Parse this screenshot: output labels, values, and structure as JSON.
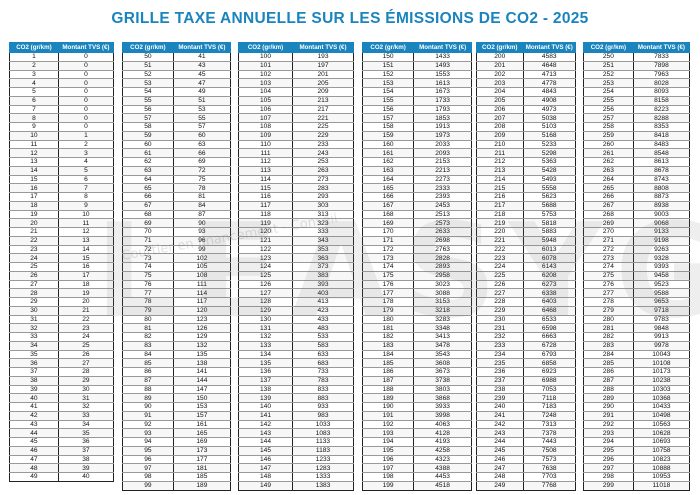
{
  "title": "GRILLE TAXE ANNUELLE SUR LES ÉMISSIONS DE CO2 - 2025",
  "accent_color": "#1a84be",
  "watermark": {
    "text": "LEASYGO",
    "subtext": "Courtier en financement - Conseil"
  },
  "headers": {
    "co2": "CO2 (gr/km)",
    "tvs": "Montant TVS (€)"
  },
  "tables": [
    {
      "rows": [
        [
          "1",
          "0"
        ],
        [
          "2",
          "0"
        ],
        [
          "3",
          "0"
        ],
        [
          "4",
          "0"
        ],
        [
          "5",
          "0"
        ],
        [
          "6",
          "0"
        ],
        [
          "7",
          "0"
        ],
        [
          "8",
          "0"
        ],
        [
          "9",
          "0"
        ],
        [
          "10",
          "1"
        ],
        [
          "11",
          "2"
        ],
        [
          "12",
          "3"
        ],
        [
          "13",
          "4"
        ],
        [
          "14",
          "5"
        ],
        [
          "15",
          "6"
        ],
        [
          "16",
          "7"
        ],
        [
          "17",
          "8"
        ],
        [
          "18",
          "9"
        ],
        [
          "19",
          "10"
        ],
        [
          "20",
          "11"
        ],
        [
          "21",
          "12"
        ],
        [
          "22",
          "13"
        ],
        [
          "23",
          "14"
        ],
        [
          "24",
          "15"
        ],
        [
          "25",
          "16"
        ],
        [
          "26",
          "17"
        ],
        [
          "27",
          "18"
        ],
        [
          "28",
          "19"
        ],
        [
          "29",
          "20"
        ],
        [
          "30",
          "21"
        ],
        [
          "31",
          "22"
        ],
        [
          "32",
          "23"
        ],
        [
          "33",
          "24"
        ],
        [
          "34",
          "25"
        ],
        [
          "35",
          "26"
        ],
        [
          "36",
          "27"
        ],
        [
          "37",
          "28"
        ],
        [
          "38",
          "29"
        ],
        [
          "39",
          "30"
        ],
        [
          "40",
          "31"
        ],
        [
          "41",
          "32"
        ],
        [
          "42",
          "33"
        ],
        [
          "43",
          "34"
        ],
        [
          "44",
          "35"
        ],
        [
          "45",
          "36"
        ],
        [
          "46",
          "37"
        ],
        [
          "47",
          "38"
        ],
        [
          "48",
          "39"
        ],
        [
          "49",
          "40"
        ]
      ]
    },
    {
      "rows": [
        [
          "50",
          "41"
        ],
        [
          "51",
          "43"
        ],
        [
          "52",
          "45"
        ],
        [
          "53",
          "47"
        ],
        [
          "54",
          "49"
        ],
        [
          "55",
          "51"
        ],
        [
          "56",
          "53"
        ],
        [
          "57",
          "55"
        ],
        [
          "58",
          "57"
        ],
        [
          "59",
          "60"
        ],
        [
          "60",
          "63"
        ],
        [
          "61",
          "66"
        ],
        [
          "62",
          "69"
        ],
        [
          "63",
          "72"
        ],
        [
          "64",
          "75"
        ],
        [
          "65",
          "78"
        ],
        [
          "66",
          "81"
        ],
        [
          "67",
          "84"
        ],
        [
          "68",
          "87"
        ],
        [
          "69",
          "90"
        ],
        [
          "70",
          "93"
        ],
        [
          "71",
          "96"
        ],
        [
          "72",
          "99"
        ],
        [
          "73",
          "102"
        ],
        [
          "74",
          "105"
        ],
        [
          "75",
          "108"
        ],
        [
          "76",
          "111"
        ],
        [
          "77",
          "114"
        ],
        [
          "78",
          "117"
        ],
        [
          "79",
          "120"
        ],
        [
          "80",
          "123"
        ],
        [
          "81",
          "126"
        ],
        [
          "82",
          "129"
        ],
        [
          "83",
          "132"
        ],
        [
          "84",
          "135"
        ],
        [
          "85",
          "138"
        ],
        [
          "86",
          "141"
        ],
        [
          "87",
          "144"
        ],
        [
          "88",
          "147"
        ],
        [
          "89",
          "150"
        ],
        [
          "90",
          "153"
        ],
        [
          "91",
          "157"
        ],
        [
          "92",
          "161"
        ],
        [
          "93",
          "165"
        ],
        [
          "94",
          "169"
        ],
        [
          "95",
          "173"
        ],
        [
          "96",
          "177"
        ],
        [
          "97",
          "181"
        ],
        [
          "98",
          "185"
        ],
        [
          "99",
          "189"
        ]
      ]
    },
    {
      "rows": [
        [
          "100",
          "193"
        ],
        [
          "101",
          "197"
        ],
        [
          "102",
          "201"
        ],
        [
          "103",
          "205"
        ],
        [
          "104",
          "209"
        ],
        [
          "105",
          "213"
        ],
        [
          "106",
          "217"
        ],
        [
          "107",
          "221"
        ],
        [
          "108",
          "225"
        ],
        [
          "109",
          "229"
        ],
        [
          "110",
          "233"
        ],
        [
          "111",
          "243"
        ],
        [
          "112",
          "253"
        ],
        [
          "113",
          "263"
        ],
        [
          "114",
          "273"
        ],
        [
          "115",
          "283"
        ],
        [
          "116",
          "293"
        ],
        [
          "117",
          "303"
        ],
        [
          "118",
          "313"
        ],
        [
          "119",
          "323"
        ],
        [
          "120",
          "333"
        ],
        [
          "121",
          "343"
        ],
        [
          "122",
          "353"
        ],
        [
          "123",
          "363"
        ],
        [
          "124",
          "373"
        ],
        [
          "125",
          "383"
        ],
        [
          "126",
          "393"
        ],
        [
          "127",
          "403"
        ],
        [
          "128",
          "413"
        ],
        [
          "129",
          "423"
        ],
        [
          "130",
          "433"
        ],
        [
          "131",
          "483"
        ],
        [
          "132",
          "533"
        ],
        [
          "133",
          "583"
        ],
        [
          "134",
          "633"
        ],
        [
          "135",
          "683"
        ],
        [
          "136",
          "733"
        ],
        [
          "137",
          "783"
        ],
        [
          "138",
          "833"
        ],
        [
          "139",
          "883"
        ],
        [
          "140",
          "933"
        ],
        [
          "141",
          "983"
        ],
        [
          "142",
          "1033"
        ],
        [
          "143",
          "1083"
        ],
        [
          "144",
          "1133"
        ],
        [
          "145",
          "1183"
        ],
        [
          "146",
          "1233"
        ],
        [
          "147",
          "1283"
        ],
        [
          "148",
          "1333"
        ],
        [
          "149",
          "1383"
        ]
      ]
    },
    {
      "rows": [
        [
          "150",
          "1433"
        ],
        [
          "151",
          "1493"
        ],
        [
          "152",
          "1553"
        ],
        [
          "153",
          "1613"
        ],
        [
          "154",
          "1673"
        ],
        [
          "155",
          "1733"
        ],
        [
          "156",
          "1793"
        ],
        [
          "157",
          "1853"
        ],
        [
          "158",
          "1913"
        ],
        [
          "159",
          "1973"
        ],
        [
          "160",
          "2033"
        ],
        [
          "161",
          "2093"
        ],
        [
          "162",
          "2153"
        ],
        [
          "163",
          "2213"
        ],
        [
          "164",
          "2273"
        ],
        [
          "165",
          "2333"
        ],
        [
          "166",
          "2393"
        ],
        [
          "167",
          "2453"
        ],
        [
          "168",
          "2513"
        ],
        [
          "169",
          "2573"
        ],
        [
          "170",
          "2633"
        ],
        [
          "171",
          "2698"
        ],
        [
          "172",
          "2763"
        ],
        [
          "173",
          "2828"
        ],
        [
          "174",
          "2893"
        ],
        [
          "175",
          "2958"
        ],
        [
          "176",
          "3023"
        ],
        [
          "177",
          "3088"
        ],
        [
          "178",
          "3153"
        ],
        [
          "179",
          "3218"
        ],
        [
          "180",
          "3283"
        ],
        [
          "181",
          "3348"
        ],
        [
          "182",
          "3413"
        ],
        [
          "183",
          "3478"
        ],
        [
          "184",
          "3543"
        ],
        [
          "185",
          "3608"
        ],
        [
          "186",
          "3673"
        ],
        [
          "187",
          "3738"
        ],
        [
          "188",
          "3803"
        ],
        [
          "189",
          "3868"
        ],
        [
          "190",
          "3933"
        ],
        [
          "191",
          "3998"
        ],
        [
          "192",
          "4063"
        ],
        [
          "193",
          "4128"
        ],
        [
          "194",
          "4193"
        ],
        [
          "195",
          "4258"
        ],
        [
          "196",
          "4323"
        ],
        [
          "197",
          "4388"
        ],
        [
          "198",
          "4453"
        ],
        [
          "199",
          "4518"
        ]
      ]
    },
    {
      "rows": [
        [
          "200",
          "4583"
        ],
        [
          "201",
          "4648"
        ],
        [
          "202",
          "4713"
        ],
        [
          "203",
          "4778"
        ],
        [
          "204",
          "4843"
        ],
        [
          "205",
          "4908"
        ],
        [
          "206",
          "4973"
        ],
        [
          "207",
          "5038"
        ],
        [
          "208",
          "5103"
        ],
        [
          "209",
          "5168"
        ],
        [
          "210",
          "5233"
        ],
        [
          "211",
          "5298"
        ],
        [
          "212",
          "5363"
        ],
        [
          "213",
          "5428"
        ],
        [
          "214",
          "5493"
        ],
        [
          "215",
          "5558"
        ],
        [
          "216",
          "5623"
        ],
        [
          "217",
          "5688"
        ],
        [
          "218",
          "5753"
        ],
        [
          "219",
          "5818"
        ],
        [
          "220",
          "5883"
        ],
        [
          "221",
          "5948"
        ],
        [
          "222",
          "6013"
        ],
        [
          "223",
          "6078"
        ],
        [
          "224",
          "6143"
        ],
        [
          "225",
          "6208"
        ],
        [
          "226",
          "6273"
        ],
        [
          "227",
          "6338"
        ],
        [
          "228",
          "6403"
        ],
        [
          "229",
          "6468"
        ],
        [
          "230",
          "6533"
        ],
        [
          "231",
          "6598"
        ],
        [
          "232",
          "6663"
        ],
        [
          "233",
          "6728"
        ],
        [
          "234",
          "6793"
        ],
        [
          "235",
          "6858"
        ],
        [
          "236",
          "6923"
        ],
        [
          "237",
          "6988"
        ],
        [
          "238",
          "7053"
        ],
        [
          "239",
          "7118"
        ],
        [
          "240",
          "7183"
        ],
        [
          "241",
          "7248"
        ],
        [
          "242",
          "7313"
        ],
        [
          "243",
          "7378"
        ],
        [
          "244",
          "7443"
        ],
        [
          "245",
          "7508"
        ],
        [
          "246",
          "7573"
        ],
        [
          "247",
          "7638"
        ],
        [
          "248",
          "7703"
        ],
        [
          "249",
          "7768"
        ]
      ]
    },
    {
      "rows": [
        [
          "250",
          "7833"
        ],
        [
          "251",
          "7898"
        ],
        [
          "252",
          "7963"
        ],
        [
          "253",
          "8028"
        ],
        [
          "254",
          "8093"
        ],
        [
          "255",
          "8158"
        ],
        [
          "256",
          "8223"
        ],
        [
          "257",
          "8288"
        ],
        [
          "258",
          "8353"
        ],
        [
          "259",
          "8418"
        ],
        [
          "260",
          "8483"
        ],
        [
          "261",
          "8548"
        ],
        [
          "262",
          "8613"
        ],
        [
          "263",
          "8678"
        ],
        [
          "264",
          "8743"
        ],
        [
          "265",
          "8808"
        ],
        [
          "266",
          "8873"
        ],
        [
          "267",
          "8938"
        ],
        [
          "268",
          "9003"
        ],
        [
          "269",
          "9068"
        ],
        [
          "270",
          "9133"
        ],
        [
          "271",
          "9198"
        ],
        [
          "272",
          "9263"
        ],
        [
          "273",
          "9328"
        ],
        [
          "274",
          "9393"
        ],
        [
          "275",
          "9458"
        ],
        [
          "276",
          "9523"
        ],
        [
          "277",
          "9588"
        ],
        [
          "278",
          "9653"
        ],
        [
          "279",
          "9718"
        ],
        [
          "280",
          "9783"
        ],
        [
          "281",
          "9848"
        ],
        [
          "282",
          "9913"
        ],
        [
          "283",
          "9978"
        ],
        [
          "284",
          "10043"
        ],
        [
          "285",
          "10108"
        ],
        [
          "286",
          "10173"
        ],
        [
          "287",
          "10238"
        ],
        [
          "288",
          "10303"
        ],
        [
          "289",
          "10368"
        ],
        [
          "290",
          "10433"
        ],
        [
          "291",
          "10498"
        ],
        [
          "292",
          "10563"
        ],
        [
          "293",
          "10628"
        ],
        [
          "294",
          "10693"
        ],
        [
          "295",
          "10758"
        ],
        [
          "296",
          "10823"
        ],
        [
          "297",
          "10888"
        ],
        [
          "298",
          "10953"
        ],
        [
          "299",
          "11018"
        ]
      ]
    }
  ]
}
